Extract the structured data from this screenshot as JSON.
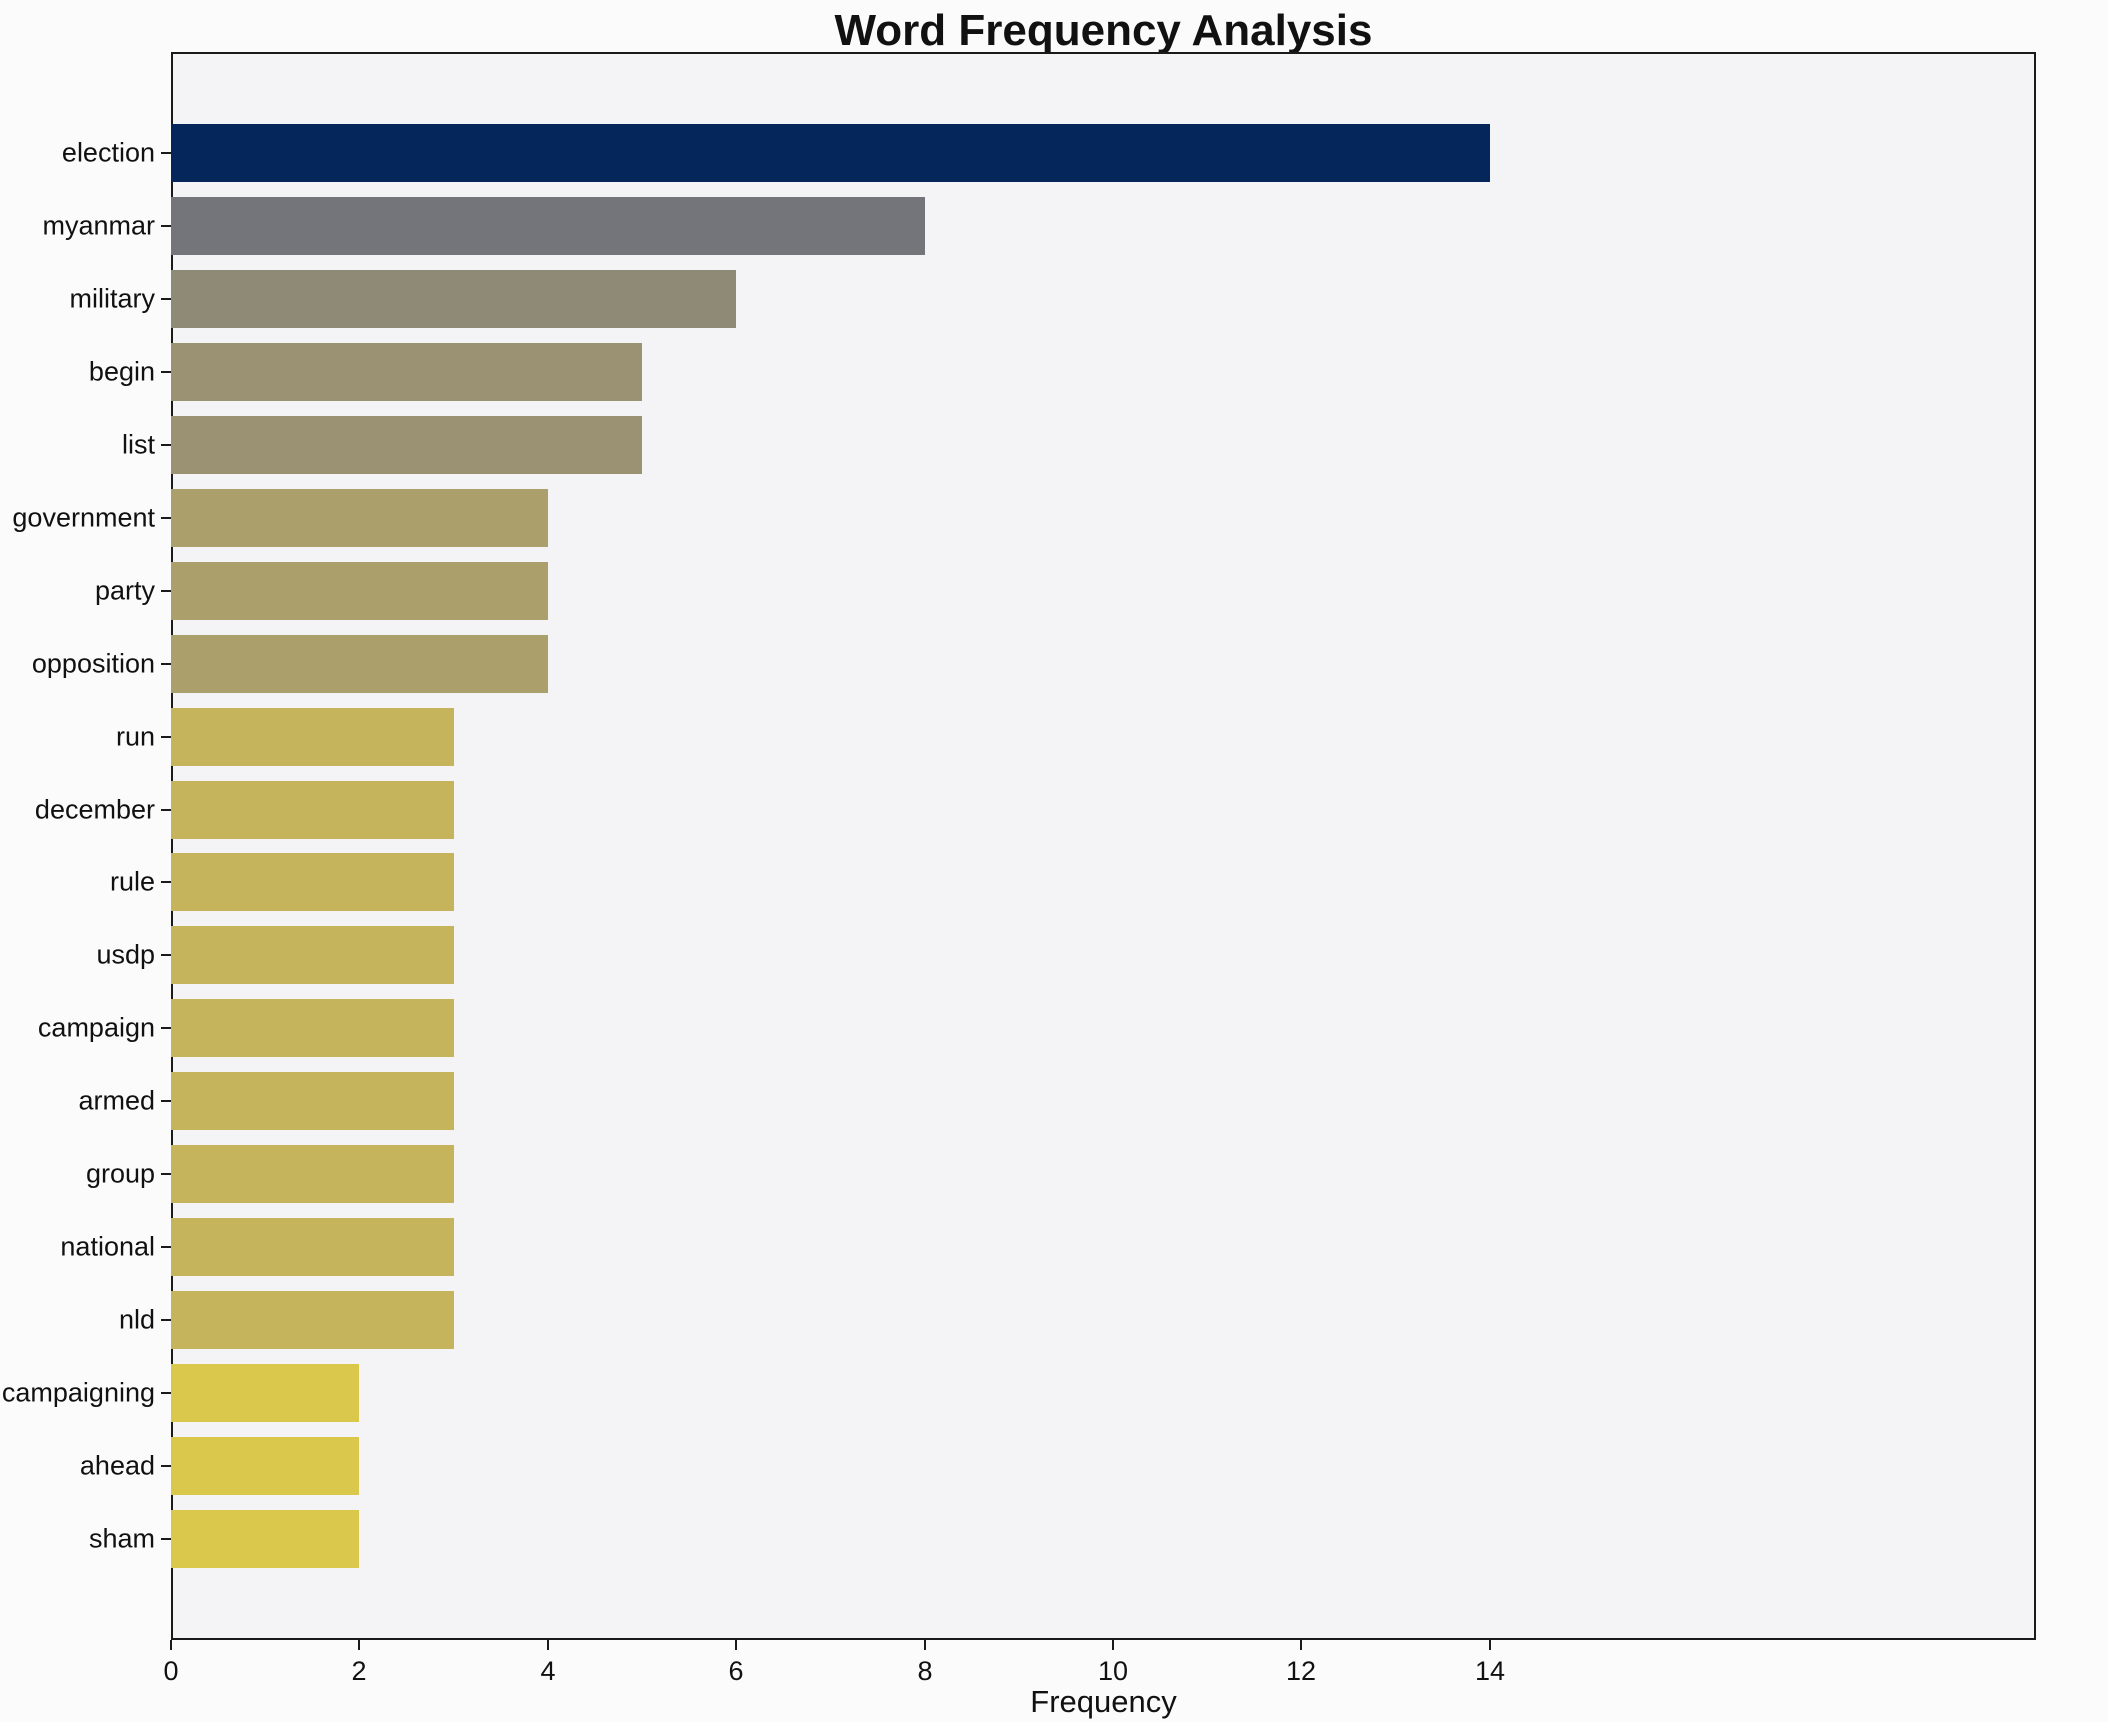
{
  "chart_data": {
    "type": "bar",
    "orientation": "horizontal",
    "title": "Word Frequency Analysis",
    "xlabel": "Frequency",
    "ylabel": "",
    "categories": [
      "election",
      "myanmar",
      "military",
      "begin",
      "list",
      "government",
      "party",
      "opposition",
      "run",
      "december",
      "rule",
      "usdp",
      "campaign",
      "armed",
      "group",
      "national",
      "nld",
      "campaigning",
      "ahead",
      "sham"
    ],
    "values": [
      14,
      8,
      6,
      5,
      5,
      4,
      4,
      4,
      3,
      3,
      3,
      3,
      3,
      3,
      3,
      3,
      3,
      2,
      2,
      2
    ],
    "bar_colors": [
      "#04265a",
      "#74747b",
      "#8f8a76",
      "#9a9272",
      "#9a9272",
      "#aba06c",
      "#aba06c",
      "#aba06c",
      "#c5b45c",
      "#c5b45c",
      "#c5b45c",
      "#c5b45c",
      "#c5b45c",
      "#c5b45c",
      "#c5b45c",
      "#c5b45c",
      "#c5b45c",
      "#d9c84b",
      "#d9c84b",
      "#d9c84b"
    ],
    "xticks": [
      0,
      2,
      4,
      6,
      8,
      10,
      12,
      14
    ],
    "xlim": [
      0,
      19.8
    ],
    "grid": false,
    "legend": false,
    "axes_background": "#f4f4f6",
    "figure_background": "#fbfbfc",
    "axis_border_color": "#1a1a1a"
  }
}
